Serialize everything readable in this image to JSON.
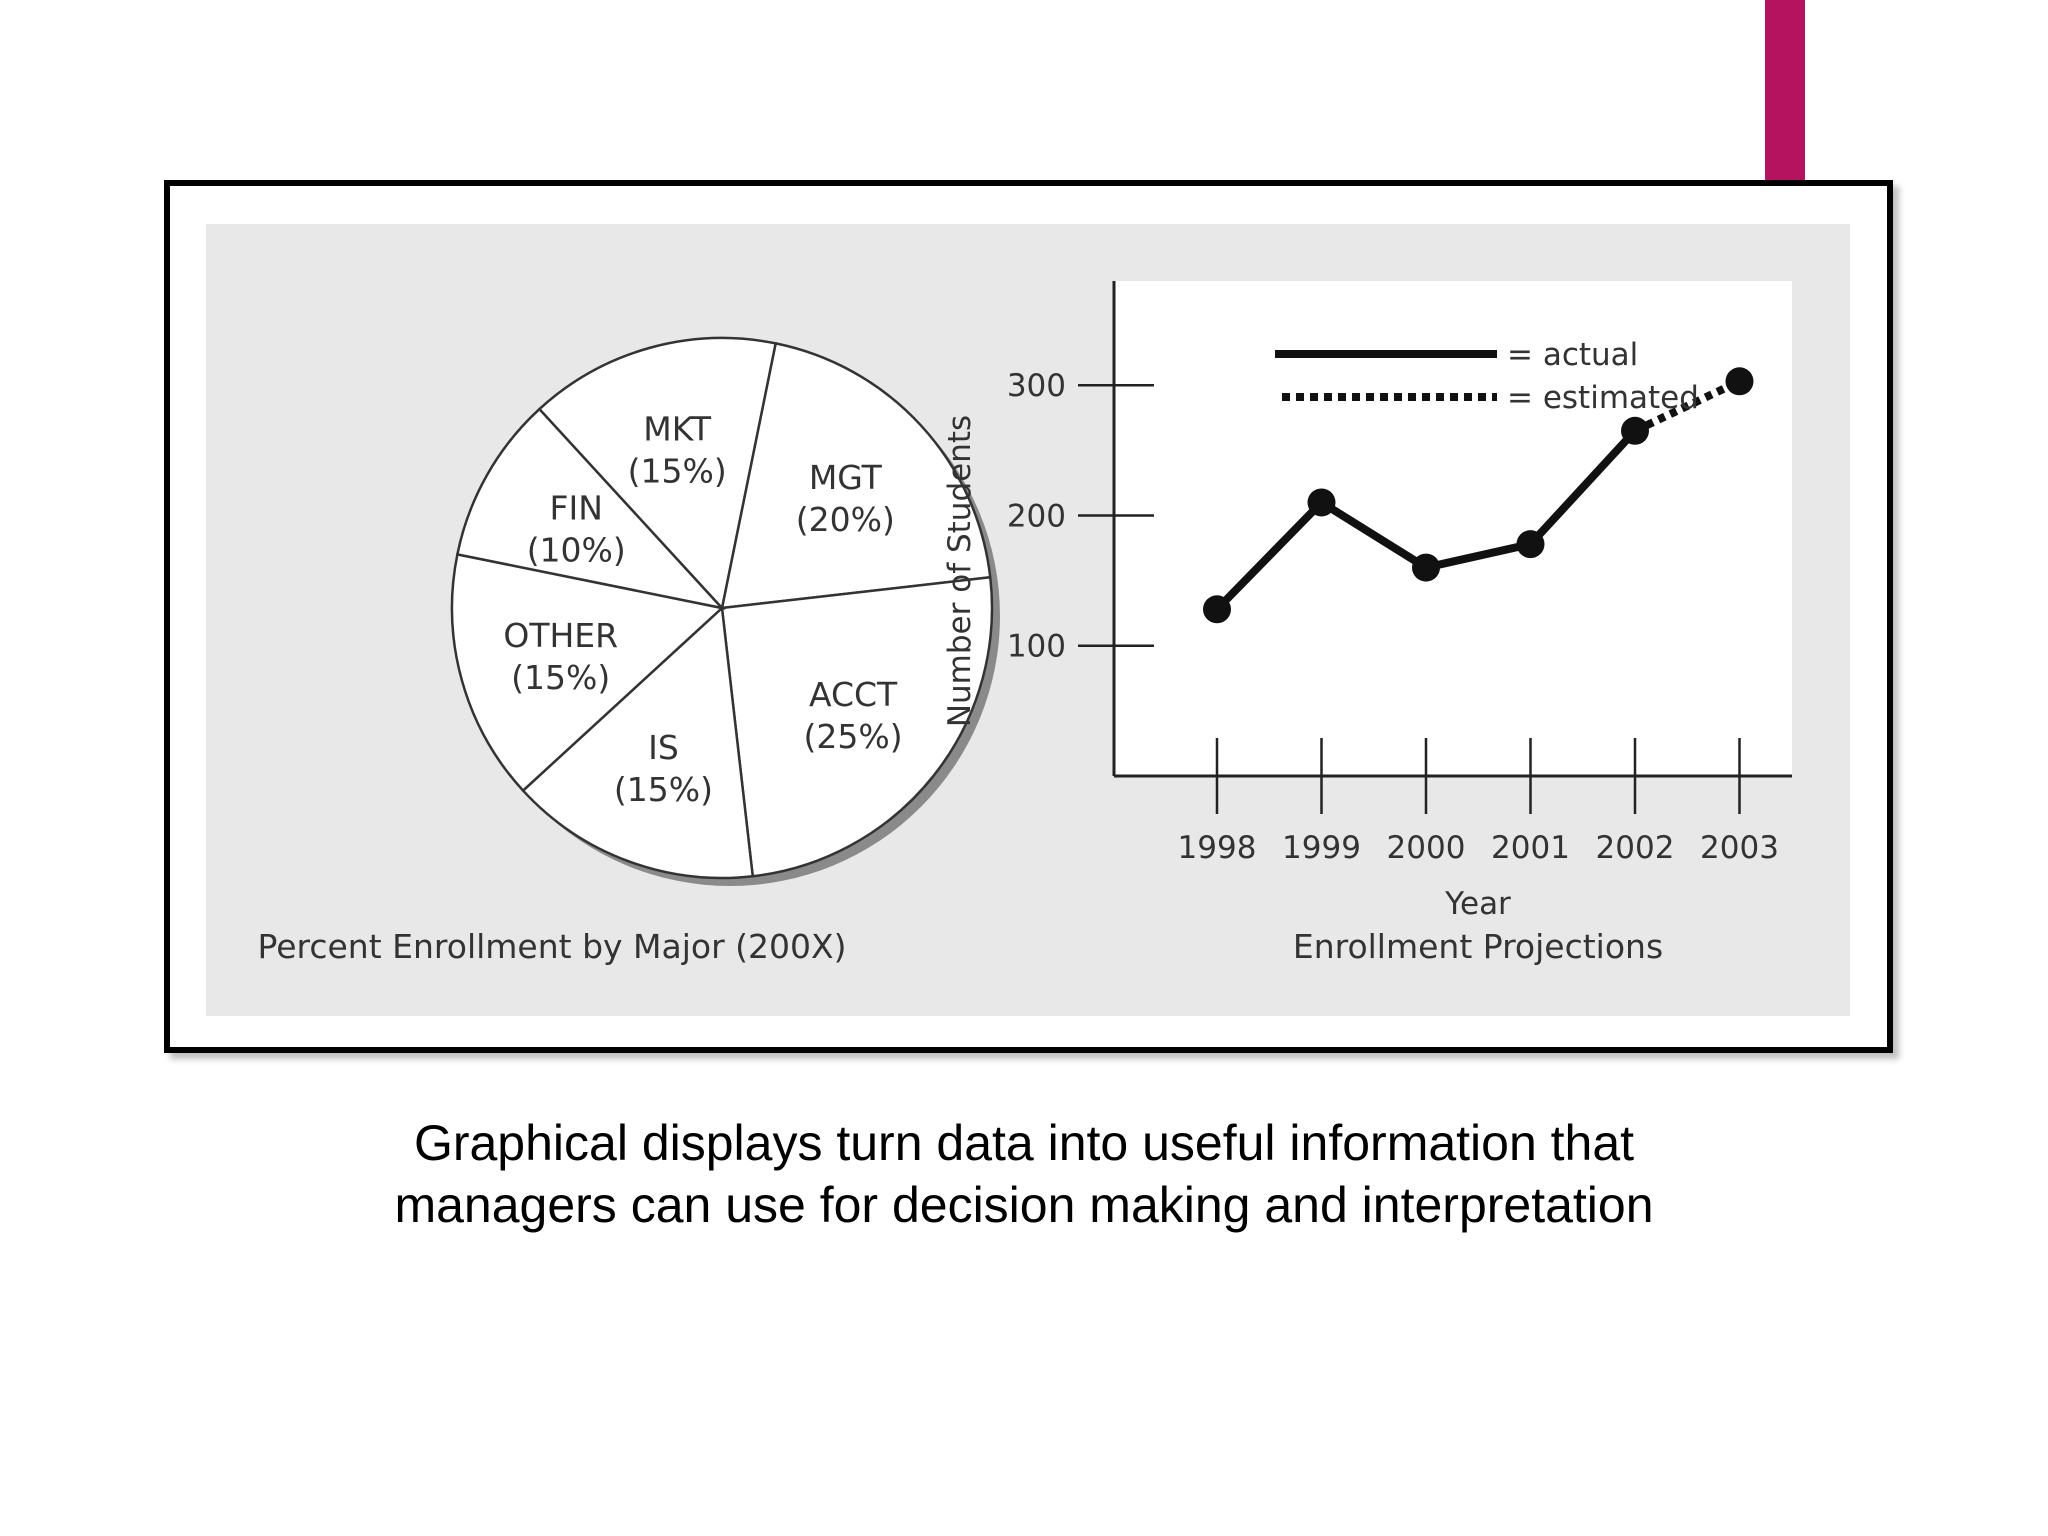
{
  "slide": {
    "accent_color": "#b5125f",
    "caption_lines": [
      "Graphical displays turn data into useful information that",
      "managers can use for decision making and interpretation"
    ]
  },
  "chart_data": [
    {
      "type": "pie",
      "title": "Percent Enrollment by Major (200X)",
      "slices": [
        {
          "label": "MGT",
          "value": 20,
          "value_label": "(20%)"
        },
        {
          "label": "ACCT",
          "value": 25,
          "value_label": "(25%)"
        },
        {
          "label": "IS",
          "value": 15,
          "value_label": "(15%)"
        },
        {
          "label": "OTHER",
          "value": 15,
          "value_label": "(15%)"
        },
        {
          "label": "FIN",
          "value": 10,
          "value_label": "(10%)"
        },
        {
          "label": "MKT",
          "value": 15,
          "value_label": "(15%)"
        }
      ]
    },
    {
      "type": "line",
      "title": "Enrollment Projections",
      "xlabel": "Year",
      "ylabel": "Number of Students",
      "categories": [
        "1998",
        "1999",
        "2000",
        "2001",
        "2002",
        "2003"
      ],
      "yticks": [
        100,
        200,
        300
      ],
      "ylim": [
        0,
        380
      ],
      "series": [
        {
          "name": "= actual",
          "style": "solid",
          "x": [
            "1998",
            "1999",
            "2000",
            "2001",
            "2002"
          ],
          "values": [
            128,
            210,
            160,
            178,
            265
          ]
        },
        {
          "name": "= estimated",
          "style": "dotted",
          "x": [
            "2002",
            "2003"
          ],
          "values": [
            265,
            303
          ]
        }
      ],
      "legend_position": "top-right"
    }
  ]
}
